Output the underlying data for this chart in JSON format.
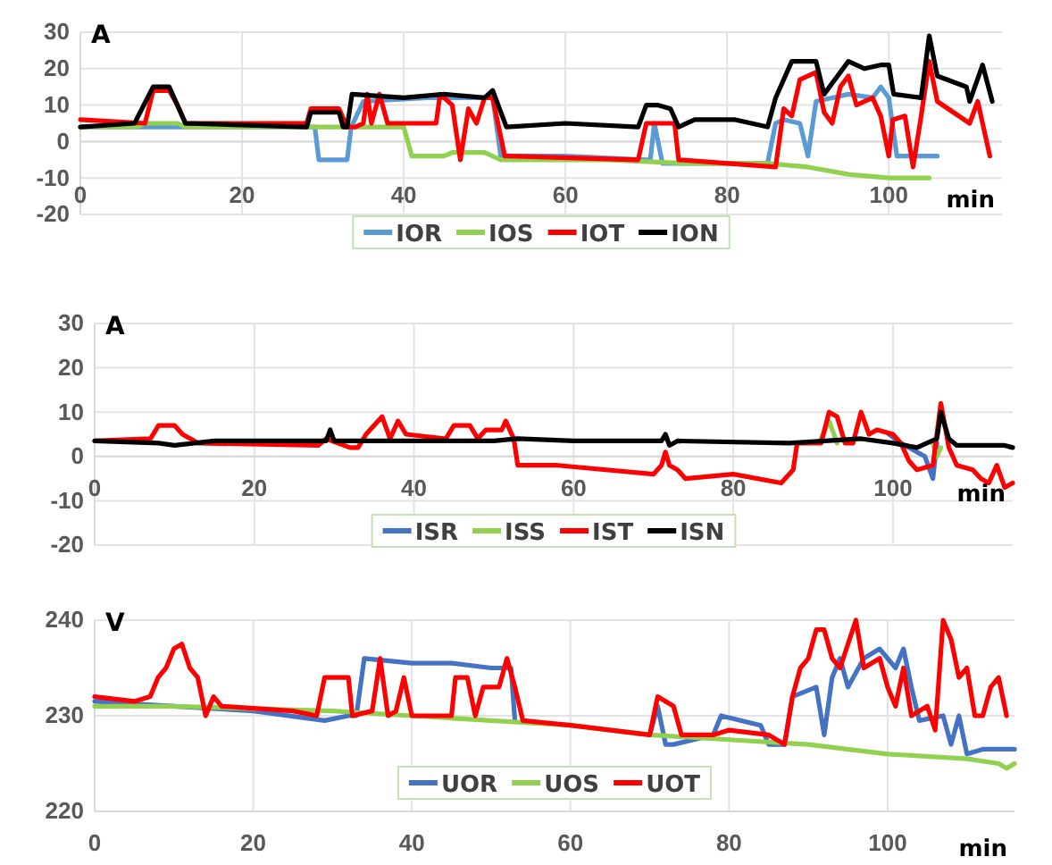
{
  "chart_data": [
    {
      "type": "line",
      "ylabel": "A",
      "xlabel": "min",
      "xlim": [
        0,
        114
      ],
      "ylim": [
        -20,
        30
      ],
      "xticks": [
        0,
        20,
        40,
        60,
        80,
        100
      ],
      "yticks": [
        -20,
        -10,
        0,
        10,
        20,
        30
      ],
      "grid": true,
      "legend": "bottom",
      "series": [
        {
          "name": "IOR",
          "color": "#5b9bd5",
          "x": [
            0,
            29,
            29.5,
            33,
            33.5,
            35,
            43,
            51,
            52,
            60,
            70,
            70.5,
            71,
            72,
            85,
            86,
            87,
            89,
            90,
            91,
            93,
            95,
            98,
            99,
            100,
            101,
            106
          ],
          "values": [
            4,
            4,
            -5,
            -5,
            4,
            11,
            12,
            12,
            -4,
            -4,
            -5,
            -5,
            5,
            -6,
            -6,
            5,
            6,
            5,
            -4,
            11,
            12,
            13,
            12,
            15,
            12,
            -4,
            -4
          ]
        },
        {
          "name": "IOS",
          "color": "#92d050",
          "x": [
            0,
            7,
            8,
            12,
            13,
            40,
            41,
            45,
            46,
            50,
            52,
            65,
            75,
            85,
            90,
            95,
            100,
            105
          ],
          "values": [
            4,
            4,
            5,
            5,
            4,
            4,
            -4,
            -4,
            -3,
            -3,
            -5,
            -5,
            -6,
            -6,
            -7,
            -9,
            -10,
            -10
          ]
        },
        {
          "name": "IOT",
          "color": "#ff0000",
          "x": [
            0,
            8,
            9,
            11,
            12,
            13,
            28,
            28.5,
            32,
            33,
            34,
            35,
            35.5,
            36,
            37,
            38,
            44,
            44.5,
            46,
            47,
            48,
            49,
            50,
            51,
            52.5,
            53,
            69,
            70,
            73.5,
            74,
            86,
            87,
            88,
            89,
            91,
            92,
            93,
            94,
            95,
            96,
            98,
            99,
            100,
            100.5,
            102,
            103,
            104,
            105,
            106,
            108,
            110,
            111,
            112.5
          ],
          "values": [
            6,
            5,
            14,
            14,
            10,
            5,
            5,
            9,
            9,
            4,
            4,
            5,
            13,
            5,
            13,
            5,
            5,
            13,
            10,
            -5,
            9,
            5,
            12,
            12,
            -4,
            -4,
            -5,
            5,
            5,
            -5,
            -7,
            9,
            7,
            17,
            19,
            8,
            5,
            15,
            18,
            10,
            12,
            7,
            -4,
            6,
            7,
            -7,
            7,
            22,
            11,
            8,
            5,
            11,
            -4
          ]
        },
        {
          "name": "ION",
          "color": "#000000",
          "x": [
            0,
            6.7,
            9,
            11,
            13,
            28,
            28.5,
            32,
            32.5,
            33,
            33.6,
            40,
            45,
            50,
            51,
            52.7,
            60,
            69,
            70,
            71.4,
            73,
            74,
            76,
            81,
            85,
            86,
            88,
            91,
            92,
            95,
            97,
            99,
            100,
            100.6,
            104,
            105,
            106,
            109.6,
            110,
            111.6,
            112.8
          ],
          "values": [
            4,
            5,
            15,
            15,
            5,
            4,
            8,
            8,
            4,
            4,
            13,
            12,
            13,
            12,
            14,
            4,
            5,
            4,
            10,
            10,
            9,
            4,
            6,
            6,
            4,
            12,
            22,
            22,
            13,
            22,
            20,
            21,
            21,
            13,
            12,
            29,
            18,
            15,
            11,
            21,
            11
          ]
        }
      ]
    },
    {
      "type": "line",
      "ylabel": "A",
      "xlabel": "min",
      "xlim": [
        0,
        115
      ],
      "ylim": [
        -20,
        30
      ],
      "xticks": [
        0,
        20,
        40,
        60,
        80,
        100
      ],
      "yticks": [
        -20,
        -10,
        0,
        10,
        20,
        30
      ],
      "grid": true,
      "legend": "bottom",
      "series": [
        {
          "name": "ISR",
          "color": "#4472c4",
          "x": [
            99.5,
            101,
            104,
            105,
            105.5
          ],
          "values": [
            5,
            3,
            0,
            -5,
            3
          ]
        },
        {
          "name": "ISS",
          "color": "#92d050",
          "x": [
            91,
            92,
            93,
            100,
            105,
            105.5,
            106
          ],
          "values": [
            4,
            8,
            3,
            null,
            3,
            0,
            2
          ]
        },
        {
          "name": "IST",
          "color": "#ff0000",
          "x": [
            0,
            7,
            8,
            10,
            11,
            12,
            13,
            28,
            29,
            32,
            33,
            34,
            36,
            37,
            38,
            39,
            44,
            45,
            47,
            48,
            49,
            51,
            51.5,
            52.5,
            53,
            58,
            70,
            71,
            71.5,
            72,
            73,
            74,
            80,
            86,
            87.5,
            88,
            91,
            92,
            93,
            94,
            95,
            96,
            97,
            98,
            100,
            101,
            102,
            103,
            105,
            106,
            107,
            108,
            110,
            111,
            112,
            113,
            114,
            115
          ],
          "values": [
            3.5,
            4,
            7,
            7,
            5,
            4,
            3,
            2.5,
            4,
            2,
            2,
            5,
            9,
            4,
            8,
            5,
            4,
            7,
            7,
            4,
            6,
            6,
            8,
            4,
            -2,
            -2,
            -4,
            -2,
            1,
            -2,
            -3,
            -5,
            -4,
            -6,
            -3,
            3,
            3,
            10,
            9,
            3,
            3,
            10,
            5,
            6,
            5,
            3,
            -1,
            -3,
            -2,
            12,
            2,
            -2,
            -3,
            -5,
            -6,
            -2,
            -7,
            -6
          ]
        },
        {
          "name": "ISN",
          "color": "#000000",
          "x": [
            0,
            8,
            10,
            15,
            29,
            29.5,
            30,
            50,
            53,
            60,
            71,
            71.5,
            72,
            73,
            87,
            96,
            100,
            103,
            105.5,
            106,
            107,
            108,
            114,
            115
          ],
          "values": [
            3.5,
            3,
            2.5,
            3.5,
            3.5,
            6,
            3.5,
            3.5,
            4,
            3.5,
            3.5,
            5,
            2.5,
            3.5,
            3,
            4,
            3,
            2,
            4,
            10,
            4,
            2.5,
            2.5,
            2
          ]
        }
      ]
    },
    {
      "type": "line",
      "ylabel": "V",
      "xlabel": "min",
      "xlim": [
        0,
        116
      ],
      "ylim": [
        220,
        240
      ],
      "xticks": [
        0,
        20,
        40,
        60,
        80,
        100
      ],
      "yticks": [
        220,
        230,
        240
      ],
      "grid": true,
      "legend": "bottom",
      "series": [
        {
          "name": "UOR",
          "color": "#4472c4",
          "x": [
            0,
            10,
            20,
            29,
            32,
            33,
            34,
            40,
            45,
            50,
            52.5,
            53,
            60,
            70,
            71,
            72,
            73,
            78,
            79,
            84,
            85,
            87,
            88,
            91,
            92,
            93,
            94,
            95,
            97,
            99,
            101,
            102,
            103,
            104,
            107,
            108,
            109,
            110,
            112,
            116
          ],
          "values": [
            231.5,
            231,
            230.5,
            229.5,
            230,
            230,
            236,
            235.5,
            235.5,
            235,
            235,
            229.5,
            null,
            228,
            231,
            227,
            227,
            228,
            230,
            229,
            227,
            227,
            232,
            233,
            228,
            234,
            236,
            233,
            236,
            237,
            235,
            237,
            233,
            229.5,
            230,
            227,
            230,
            226,
            226.5,
            226.5
          ]
        },
        {
          "name": "UOS",
          "color": "#92d050",
          "x": [
            0,
            10,
            30,
            40,
            50,
            60,
            70,
            80,
            90,
            100,
            110,
            114,
            115,
            116
          ],
          "values": [
            231,
            231,
            230.5,
            230,
            229.5,
            229,
            228,
            227.5,
            227,
            226,
            225.5,
            225,
            224.5,
            225
          ]
        },
        {
          "name": "UOT",
          "color": "#ff0000",
          "x": [
            0,
            5,
            7,
            8,
            9,
            10,
            11,
            12,
            13,
            14,
            15,
            16,
            25,
            28,
            29,
            32,
            32.5,
            35,
            36,
            37,
            38,
            39,
            40,
            45,
            45.5,
            47,
            48,
            49,
            51,
            52,
            53,
            54,
            60,
            70,
            71,
            73,
            74,
            78,
            80,
            85,
            87,
            88,
            89,
            90,
            91,
            92,
            93,
            94,
            96,
            97,
            99,
            100,
            101,
            102,
            103,
            105,
            106,
            107,
            108,
            109,
            110,
            111,
            112,
            113,
            114,
            115
          ],
          "values": [
            232,
            231.5,
            232,
            234,
            235,
            237,
            237.5,
            235,
            234,
            230,
            232,
            231,
            230.5,
            230,
            234,
            234,
            230,
            230.5,
            236,
            230,
            230.5,
            234,
            230,
            230,
            234,
            234,
            230,
            233,
            233,
            236,
            233,
            229.5,
            229,
            228,
            232,
            231,
            228,
            228,
            228.5,
            228,
            227,
            232,
            235,
            236,
            239,
            239,
            236,
            235,
            240,
            235,
            236,
            233,
            231,
            235,
            230,
            231,
            228.5,
            240,
            238,
            234,
            235,
            230,
            230,
            233,
            234,
            230
          ]
        }
      ]
    }
  ]
}
